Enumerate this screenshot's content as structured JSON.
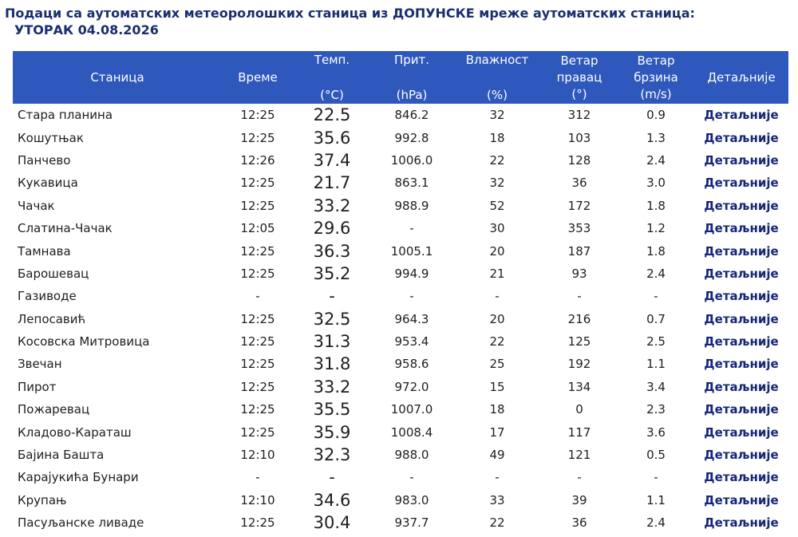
{
  "header": {
    "title_line1": "Подаци са аутоматских метеоролошких станица из ДОПУНСКЕ мреже аутоматских станица:",
    "title_line2": "УТОРАК 04.08.2026"
  },
  "columns": {
    "station": "Станица",
    "time": "Време",
    "temp_top": "Темп.",
    "temp_unit": "(°C)",
    "pressure_top": "Прит.",
    "pressure_unit": "(hPa)",
    "humidity_top": "Влажност",
    "humidity_unit": "(%)",
    "wind_dir_line1": "Ветар",
    "wind_dir_line2": "правац",
    "wind_dir_unit": "(°)",
    "wind_spd_line1": "Ветар",
    "wind_spd_line2": "брзина",
    "wind_spd_unit": "(m/s)",
    "details": "Детаљније"
  },
  "rows": [
    {
      "station": "Стара планина",
      "time": "12:25",
      "temp": "22.5",
      "pressure": "846.2",
      "humidity": "32",
      "wind_dir": "312",
      "wind_speed": "0.9",
      "details": "Детаљније"
    },
    {
      "station": "Кошутњак",
      "time": "12:25",
      "temp": "35.6",
      "pressure": "992.8",
      "humidity": "18",
      "wind_dir": "103",
      "wind_speed": "1.3",
      "details": "Детаљније"
    },
    {
      "station": "Панчево",
      "time": "12:26",
      "temp": "37.4",
      "pressure": "1006.0",
      "humidity": "22",
      "wind_dir": "128",
      "wind_speed": "2.4",
      "details": "Детаљније"
    },
    {
      "station": "Кукавица",
      "time": "12:25",
      "temp": "21.7",
      "pressure": "863.1",
      "humidity": "32",
      "wind_dir": "36",
      "wind_speed": "3.0",
      "details": "Детаљније"
    },
    {
      "station": "Чачак",
      "time": "12:25",
      "temp": "33.2",
      "pressure": "988.9",
      "humidity": "52",
      "wind_dir": "172",
      "wind_speed": "1.8",
      "details": "Детаљније"
    },
    {
      "station": "Слатина-Чачак",
      "time": "12:05",
      "temp": "29.6",
      "pressure": "-",
      "humidity": "30",
      "wind_dir": "353",
      "wind_speed": "1.2",
      "details": "Детаљније"
    },
    {
      "station": "Тамнава",
      "time": "12:25",
      "temp": "36.3",
      "pressure": "1005.1",
      "humidity": "20",
      "wind_dir": "187",
      "wind_speed": "1.8",
      "details": "Детаљније"
    },
    {
      "station": "Барошевац",
      "time": "12:25",
      "temp": "35.2",
      "pressure": "994.9",
      "humidity": "21",
      "wind_dir": "93",
      "wind_speed": "2.4",
      "details": "Детаљније"
    },
    {
      "station": "Газиводе",
      "time": "-",
      "temp": "-",
      "pressure": "-",
      "humidity": "-",
      "wind_dir": "-",
      "wind_speed": "-",
      "details": "Детаљније"
    },
    {
      "station": "Лепосавић",
      "time": "12:25",
      "temp": "32.5",
      "pressure": "964.3",
      "humidity": "20",
      "wind_dir": "216",
      "wind_speed": "0.7",
      "details": "Детаљније"
    },
    {
      "station": "Косовска Митровица",
      "time": "12:25",
      "temp": "31.3",
      "pressure": "953.4",
      "humidity": "22",
      "wind_dir": "125",
      "wind_speed": "2.5",
      "details": "Детаљније"
    },
    {
      "station": "Звечан",
      "time": "12:25",
      "temp": "31.8",
      "pressure": "958.6",
      "humidity": "25",
      "wind_dir": "192",
      "wind_speed": "1.1",
      "details": "Детаљније"
    },
    {
      "station": "Пирот",
      "time": "12:25",
      "temp": "33.2",
      "pressure": "972.0",
      "humidity": "15",
      "wind_dir": "134",
      "wind_speed": "3.4",
      "details": "Детаљније"
    },
    {
      "station": "Пожаревац",
      "time": "12:25",
      "temp": "35.5",
      "pressure": "1007.0",
      "humidity": "18",
      "wind_dir": "0",
      "wind_speed": "2.3",
      "details": "Детаљније"
    },
    {
      "station": "Кладово-Караташ",
      "time": "12:25",
      "temp": "35.9",
      "pressure": "1008.4",
      "humidity": "17",
      "wind_dir": "117",
      "wind_speed": "3.6",
      "details": "Детаљније"
    },
    {
      "station": "Бајина Башта",
      "time": "12:10",
      "temp": "32.3",
      "pressure": "988.0",
      "humidity": "49",
      "wind_dir": "121",
      "wind_speed": "0.5",
      "details": "Детаљније"
    },
    {
      "station": "Карајукића Бунари",
      "time": "-",
      "temp": "-",
      "pressure": "-",
      "humidity": "-",
      "wind_dir": "-",
      "wind_speed": "-",
      "details": "Детаљније"
    },
    {
      "station": "Крупањ",
      "time": "12:10",
      "temp": "34.6",
      "pressure": "983.0",
      "humidity": "33",
      "wind_dir": "39",
      "wind_speed": "1.1",
      "details": "Детаљније"
    },
    {
      "station": "Пасуљанске ливаде",
      "time": "12:25",
      "temp": "30.4",
      "pressure": "937.7",
      "humidity": "22",
      "wind_dir": "36",
      "wind_speed": "2.4",
      "details": "Детаљније"
    }
  ],
  "colors": {
    "header_bg": "#2f58bd",
    "title_text": "#1a2e6e",
    "link_text": "#16267a"
  }
}
